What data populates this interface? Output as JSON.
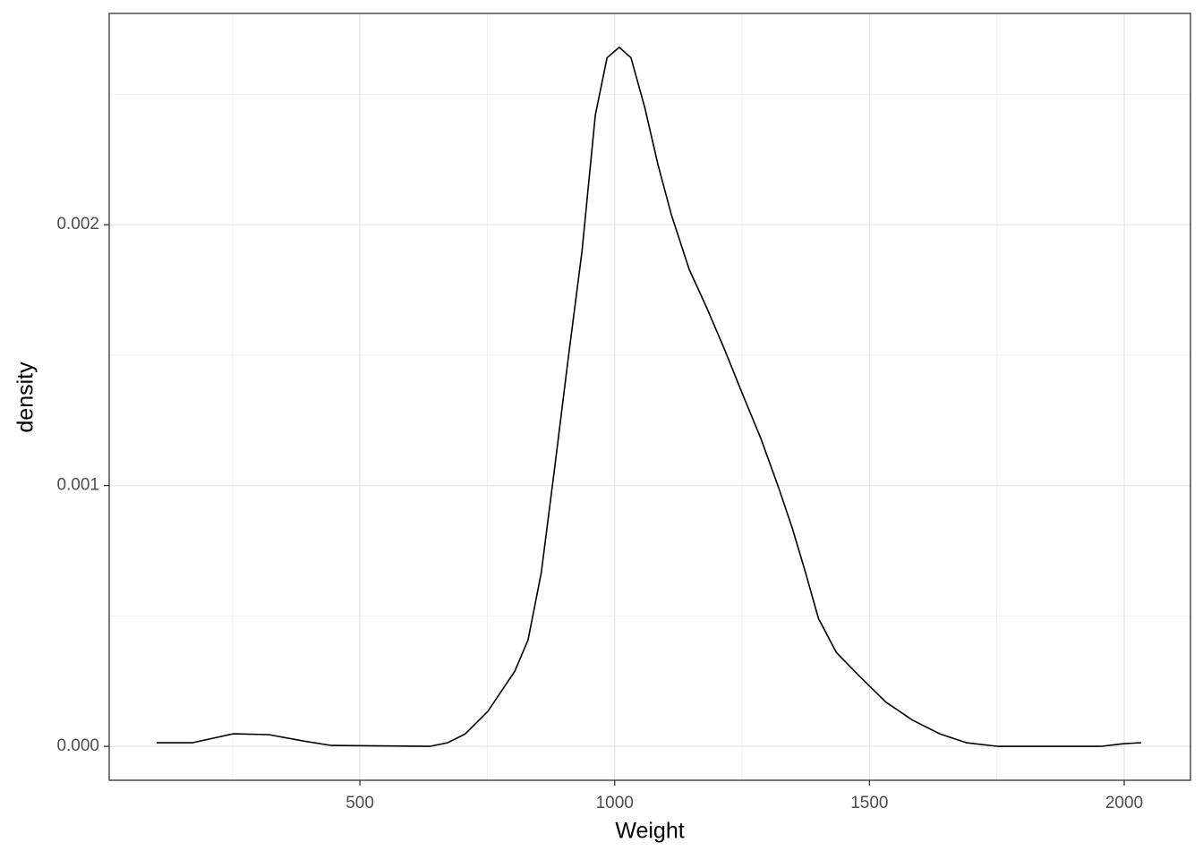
{
  "chart_data": {
    "type": "density",
    "x_label": "Weight",
    "y_label": "density",
    "x": [
      101,
      172,
      251,
      321,
      391,
      444,
      637,
      672,
      707,
      751,
      804,
      830,
      856,
      883,
      909,
      936,
      962,
      985,
      1009,
      1032,
      1059,
      1085,
      1111,
      1146,
      1181,
      1216,
      1251,
      1287,
      1322,
      1348,
      1374,
      1400,
      1435,
      1480,
      1532,
      1585,
      1638,
      1690,
      1752,
      1954,
      1998,
      2033
    ],
    "values": [
      1.37e-05,
      1.4e-05,
      4.8e-05,
      4.5e-05,
      2e-05,
      3.4e-06,
      0,
      1.37e-05,
      4.8e-05,
      0.000134,
      0.000288,
      0.000408,
      0.000666,
      0.00108,
      0.00149,
      0.0019,
      0.00242,
      0.00264,
      0.00268,
      0.00264,
      0.00245,
      0.00223,
      0.00204,
      0.00183,
      0.00168,
      0.00152,
      0.00135,
      0.00118,
      0.00099,
      0.00084,
      0.00067,
      0.00049,
      0.00036,
      0.00027,
      0.00017,
      0.0001,
      4.8e-05,
      1.4e-05,
      0,
      0,
      1e-05,
      1.4e-05
    ],
    "color": "#000000",
    "xlim": [
      8,
      2130
    ],
    "ylim": [
      -0.00013,
      0.00281
    ],
    "xticks": [
      500,
      1000,
      1500,
      2000
    ],
    "yticks": [
      {
        "value": 0,
        "label": "0.000"
      },
      {
        "value": 0.001,
        "label": "0.001"
      },
      {
        "value": 0.002,
        "label": "0.002"
      }
    ],
    "xminorticks": [
      250,
      750,
      1250,
      1750
    ],
    "yminorticks": [
      0.0005,
      0.0015,
      0.0025
    ],
    "grid": true
  }
}
